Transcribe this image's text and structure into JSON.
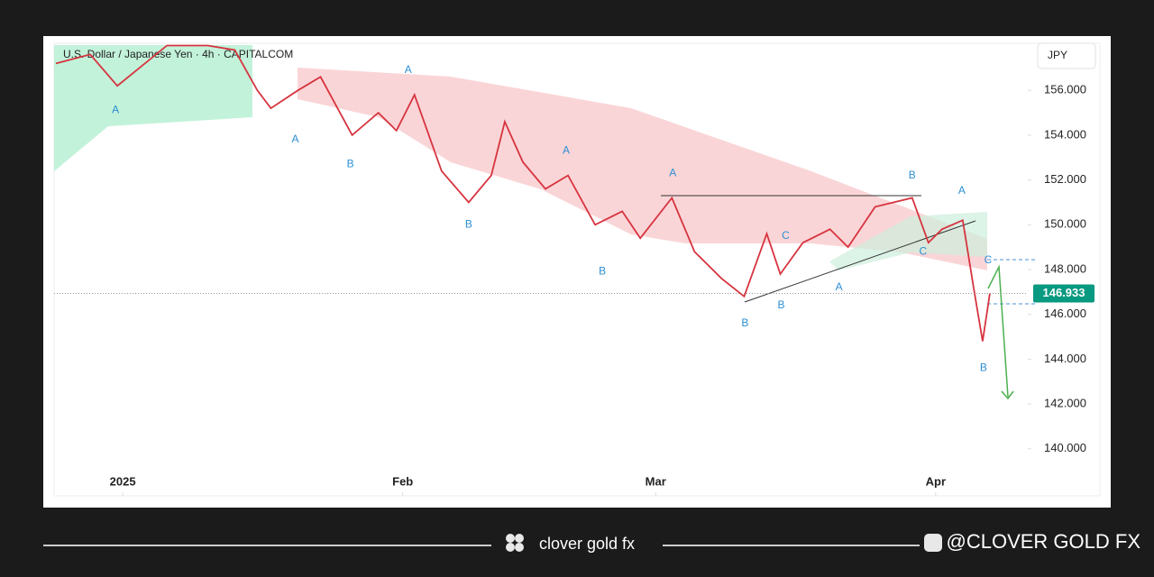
{
  "chart_data": {
    "type": "line",
    "title": "U.S. Dollar / Japanese Yen · 4h · CAPITALCOM",
    "currency": "JPY",
    "x": [
      -7.4,
      -3.6,
      -0.6,
      4.9,
      9.4,
      12.4,
      14.9,
      16.4,
      19.4,
      21.9,
      25.4,
      28.3,
      30.3,
      32.3,
      35.3,
      38.3,
      40.8,
      42.3,
      44.3,
      46.8,
      49.3,
      52.3,
      55.3,
      57.3,
      60.8,
      63.3,
      66.3,
      68.8,
      71.3,
      72.8,
      75.3,
      78.3,
      80.3,
      83.3,
      87.4,
      89.2,
      90.7,
      93.0,
      94.2,
      95.2,
      96.0
    ],
    "series": [
      {
        "name": "USDJPY",
        "color": "#d6343f",
        "values": [
          157.2,
          157.6,
          156.2,
          158.0,
          158.0,
          157.8,
          156.0,
          155.2,
          156.0,
          156.6,
          154.0,
          155.0,
          154.2,
          155.8,
          152.4,
          151.0,
          152.2,
          154.6,
          152.8,
          151.6,
          152.2,
          150.0,
          150.6,
          149.4,
          151.2,
          148.8,
          147.6,
          146.8,
          149.6,
          147.8,
          149.2,
          149.8,
          149.0,
          150.8,
          151.2,
          149.2,
          149.8,
          150.2,
          147.2,
          144.8,
          146.933
        ]
      }
    ],
    "last_price": 146.933,
    "xlim": [
      -7.6,
      100.2
    ],
    "xticks": [
      {
        "value": 0,
        "label": "2025"
      },
      {
        "value": 31,
        "label": "Feb"
      },
      {
        "value": 59,
        "label": "Mar"
      },
      {
        "value": 90,
        "label": "Apr"
      }
    ],
    "ylim": [
      137.9,
      158.1
    ],
    "yticks": [
      {
        "value": 140,
        "label": "140.000"
      },
      {
        "value": 142,
        "label": "142.000"
      },
      {
        "value": 144,
        "label": "144.000"
      },
      {
        "value": 146,
        "label": "146.000"
      },
      {
        "value": 148,
        "label": "148.000"
      },
      {
        "value": 150,
        "label": "150.000"
      },
      {
        "value": 152,
        "label": "152.000"
      },
      {
        "value": 154,
        "label": "154.000"
      },
      {
        "value": 156,
        "label": "156.000"
      }
    ],
    "grid": false,
    "annotations": [
      {
        "text": "A",
        "x": -0.8,
        "y": 155.1
      },
      {
        "text": "A",
        "x": 19.1,
        "y": 153.8
      },
      {
        "text": "B",
        "x": 25.2,
        "y": 152.7
      },
      {
        "text": "A",
        "x": 31.6,
        "y": 156.9
      },
      {
        "text": "B",
        "x": 38.3,
        "y": 150.0
      },
      {
        "text": "A",
        "x": 49.1,
        "y": 153.3
      },
      {
        "text": "B",
        "x": 53.1,
        "y": 147.9
      },
      {
        "text": "A",
        "x": 60.9,
        "y": 152.3
      },
      {
        "text": "B",
        "x": 68.9,
        "y": 145.6
      },
      {
        "text": "B",
        "x": 72.9,
        "y": 146.4
      },
      {
        "text": "C",
        "x": 73.4,
        "y": 149.5
      },
      {
        "text": "A",
        "x": 79.3,
        "y": 147.2
      },
      {
        "text": "C",
        "x": 88.6,
        "y": 148.8
      },
      {
        "text": "B",
        "x": 87.4,
        "y": 152.2
      },
      {
        "text": "A",
        "x": 92.9,
        "y": 151.5
      },
      {
        "text": "C",
        "x": 95.8,
        "y": 148.4
      },
      {
        "text": "B",
        "x": 95.3,
        "y": 143.6
      }
    ]
  },
  "footer": {
    "brand": "clover gold fx",
    "handle": "@CLOVER GOLD FX"
  }
}
